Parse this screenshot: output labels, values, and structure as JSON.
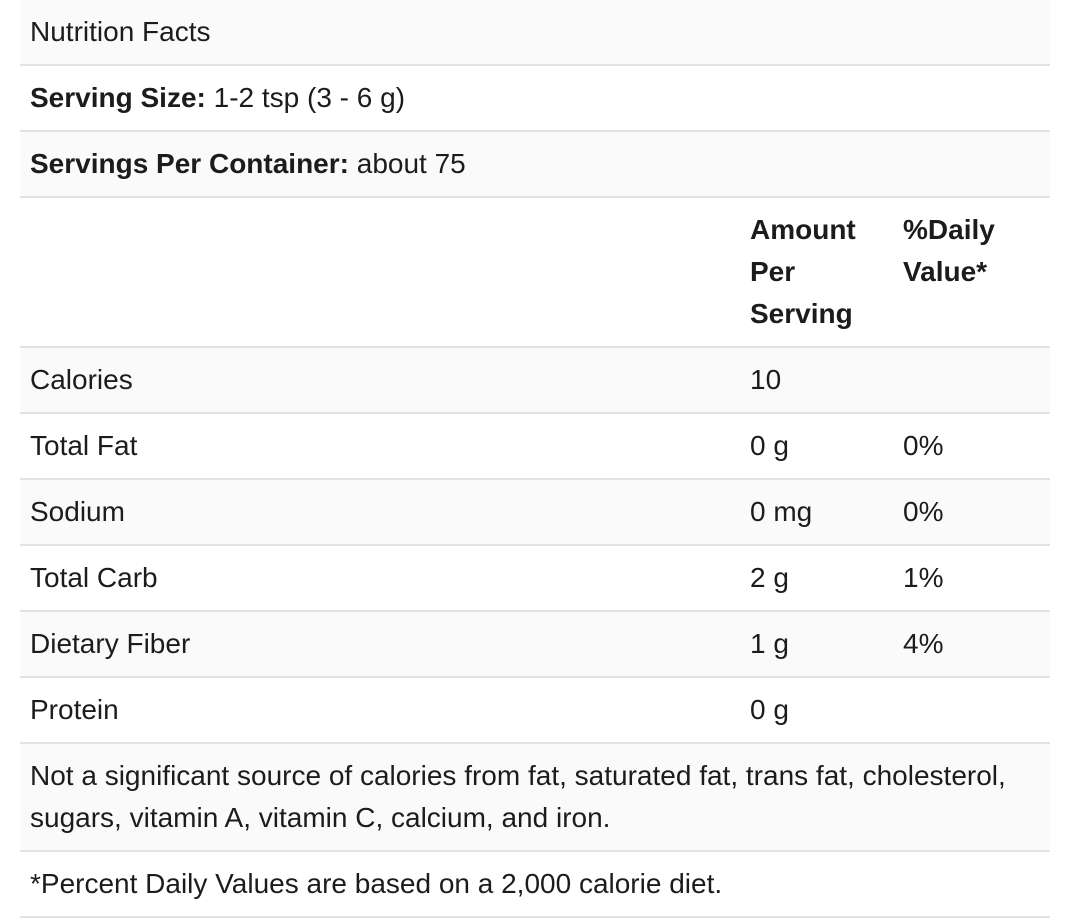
{
  "title": "Nutrition Facts",
  "serving_size": {
    "label": "Serving Size:",
    "value": "1-2 tsp (3 - 6 g)"
  },
  "servings_per_container": {
    "label": "Servings Per Container:",
    "value": "about 75"
  },
  "table": {
    "columns": {
      "label": "",
      "amount": "Amount Per Serving",
      "daily_value": "%Daily Value*"
    },
    "rows": [
      {
        "nutrient": "Calories",
        "amount": "10",
        "daily_value": ""
      },
      {
        "nutrient": "Total Fat",
        "amount": "0 g",
        "daily_value": "0%"
      },
      {
        "nutrient": "Sodium",
        "amount": "0 mg",
        "daily_value": "0%"
      },
      {
        "nutrient": "Total Carb",
        "amount": "2 g",
        "daily_value": "1%"
      },
      {
        "nutrient": "Dietary Fiber",
        "amount": "1 g",
        "daily_value": "4%"
      },
      {
        "nutrient": "Protein",
        "amount": "0 g",
        "daily_value": ""
      }
    ]
  },
  "notes": {
    "insignificant_sources": "Not a significant source of calories from fat, saturated fat, trans fat, cholesterol, sugars, vitamin A, vitamin C, calcium, and iron.",
    "percent_daily_values": "*Percent Daily Values are based on a 2,000 calorie diet."
  },
  "colors": {
    "stripe": "#fafafa",
    "border": "#e2e2e2",
    "text": "#1c1c1c"
  }
}
